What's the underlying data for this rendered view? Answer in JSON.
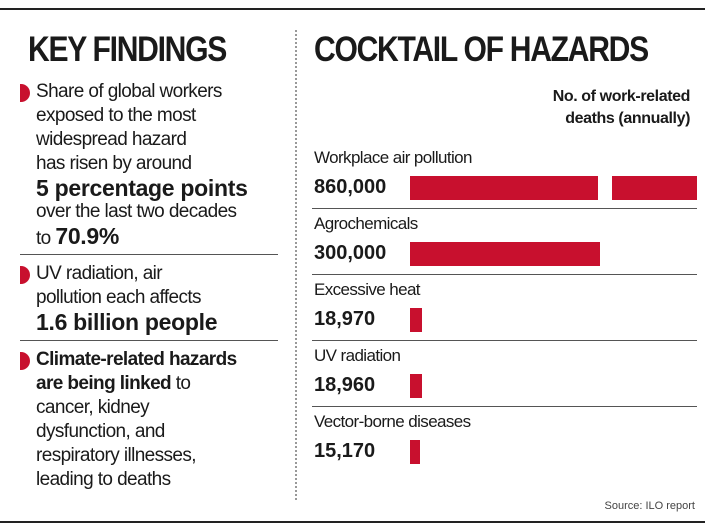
{
  "key_findings": {
    "title": "KEY FINDINGS",
    "items": [
      {
        "lines": [
          [
            {
              "text": "Share of global workers"
            }
          ],
          [
            {
              "text": "exposed to the most"
            }
          ],
          [
            {
              "text": "widespread hazard"
            }
          ],
          [
            {
              "text": "has risen by around"
            }
          ],
          [
            {
              "text": "5 percentage points",
              "bold": true,
              "emphasis": "large"
            }
          ],
          [
            {
              "text": "over the last two decades"
            }
          ],
          [
            {
              "text": "to "
            },
            {
              "text": "70.9%",
              "bold": true,
              "emphasis": "large"
            }
          ]
        ]
      },
      {
        "lines": [
          [
            {
              "text": "UV radiation, air"
            }
          ],
          [
            {
              "text": "pollution each affects"
            }
          ],
          [
            {
              "text": "1.6 billion people",
              "bold": true,
              "emphasis": "large"
            }
          ]
        ]
      },
      {
        "lines": [
          [
            {
              "text": "Climate-related hazards",
              "bold": true
            }
          ],
          [
            {
              "text": "are being linked",
              "bold": true
            },
            {
              "text": " to"
            }
          ],
          [
            {
              "text": "cancer, kidney"
            }
          ],
          [
            {
              "text": "dysfunction, and"
            }
          ],
          [
            {
              "text": "respiratory illnesses,"
            }
          ],
          [
            {
              "text": "leading to deaths"
            }
          ]
        ]
      }
    ]
  },
  "chart_data": {
    "type": "bar",
    "orientation": "horizontal",
    "title": "COCKTAIL OF HAZARDS",
    "value_axis_label": "No. of work-related deaths (annually)",
    "categories": [
      "Workplace air pollution",
      "Agrochemicals",
      "Excessive heat",
      "UV radiation",
      "Vector-borne diseases"
    ],
    "values": [
      860000,
      300000,
      18970,
      18960,
      15170
    ],
    "value_labels": [
      "860,000",
      "300,000",
      "18,970",
      "18,960",
      "15,170"
    ],
    "color": "#c8102e",
    "source": "Source: ILO report"
  }
}
